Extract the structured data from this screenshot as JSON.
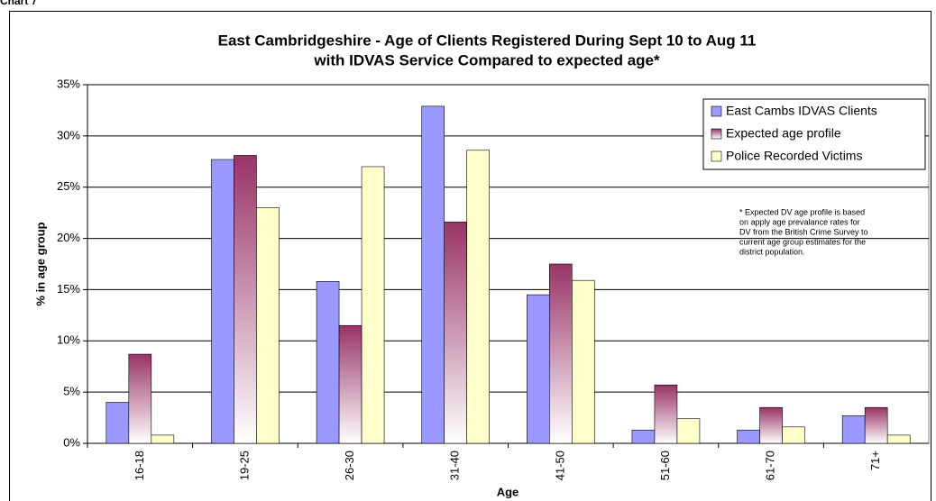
{
  "page_label": "Chart 7",
  "chart_data": {
    "type": "bar",
    "title": [
      "East Cambridgeshire - Age of Clients Registered During Sept 10 to Aug 11",
      "with IDVAS Service Compared to expected age*"
    ],
    "x_label": "Age",
    "y_label": "% in age group",
    "categories": [
      "16-18",
      "19-25",
      "26-30",
      "31-40",
      "41-50",
      "51-60",
      "61-70",
      "71+"
    ],
    "series": [
      {
        "name": "East Cambs IDVAS Clients",
        "color": "#9999ff",
        "values": [
          4.0,
          27.7,
          15.8,
          32.9,
          14.5,
          1.3,
          1.3,
          2.7
        ]
      },
      {
        "name": "Expected age profile",
        "color": "#993366",
        "gradient": true,
        "values": [
          8.7,
          28.1,
          11.5,
          21.6,
          17.5,
          5.7,
          3.5,
          3.5
        ]
      },
      {
        "name": "Police Recorded Victims",
        "color": "#ffffcc",
        "values": [
          0.8,
          23.0,
          27.0,
          28.6,
          15.9,
          2.4,
          1.6,
          0.8
        ]
      }
    ],
    "ylim": [
      0,
      35
    ],
    "yticks": [
      {
        "value": 0,
        "label": "0%"
      },
      {
        "value": 5,
        "label": "5%"
      },
      {
        "value": 10,
        "label": "10%"
      },
      {
        "value": 15,
        "label": "15%"
      },
      {
        "value": 20,
        "label": "20%"
      },
      {
        "value": 25,
        "label": "25%"
      },
      {
        "value": 30,
        "label": "30%"
      },
      {
        "value": 35,
        "label": "35%"
      }
    ],
    "grid": true,
    "legend": "upper right",
    "note": [
      "* Expected DV age profile is based",
      "on apply age prevalance rates for",
      "DV from the British Crime Survey to",
      "current age group estimates for the",
      "district population."
    ]
  }
}
